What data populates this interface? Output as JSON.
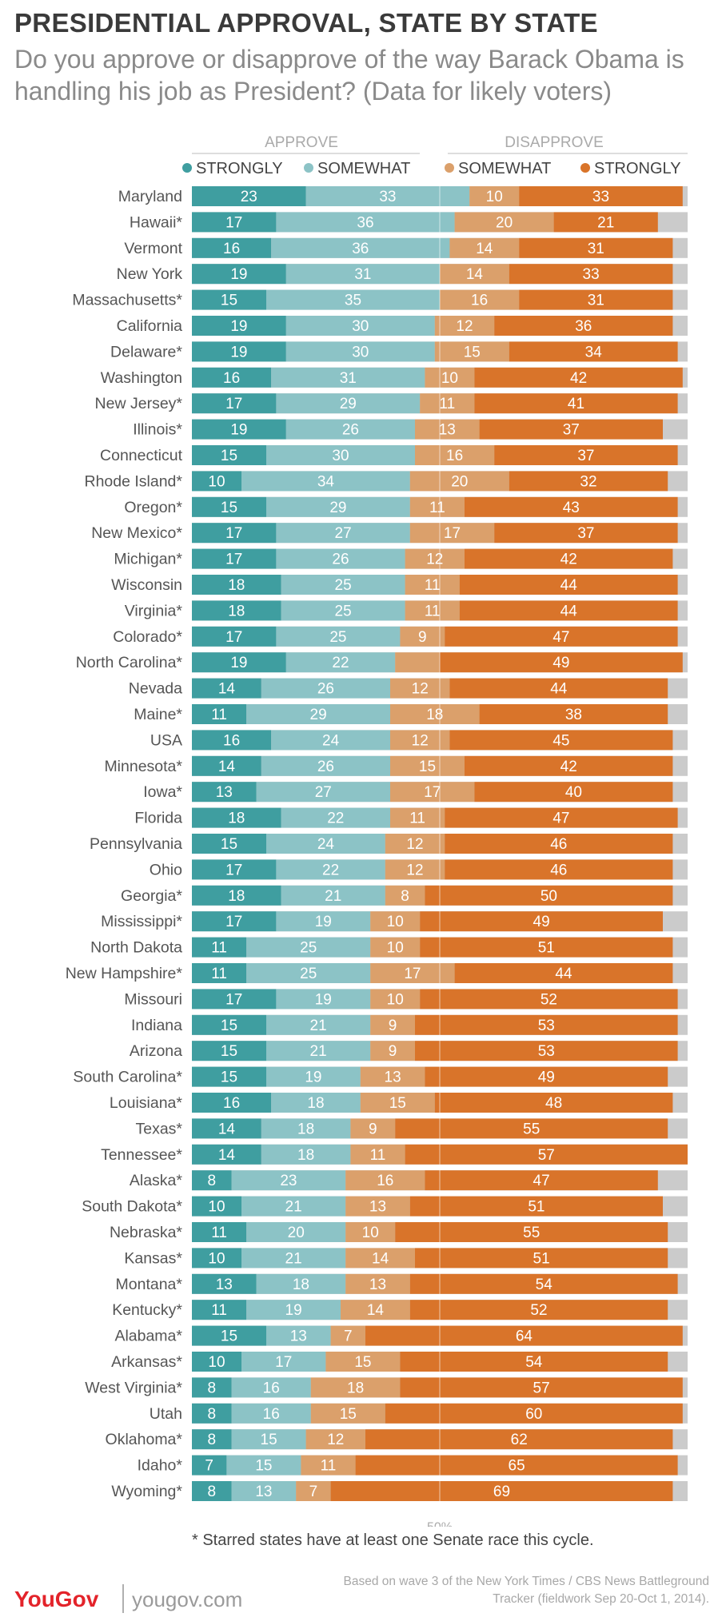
{
  "title": "PRESIDENTIAL APPROVAL, STATE BY STATE",
  "subtitle": "Do you approve or disapprove of the way Barack Obama is handling his job as President? (Data for likely voters)",
  "footnote": "* Starred states have at least one Senate race this cycle.",
  "brand": "YouGov",
  "site": "yougov.com",
  "source": "Based on wave 3 of the New York Times / CBS News Battleground Tracker (fieldwork Sep 20-Oct 1, 2014).",
  "colors": {
    "strongly_approve": "#3f9ea0",
    "somewhat_approve": "#8cc3c6",
    "somewhat_disapprove": "#dba06b",
    "strongly_disapprove": "#d9742a",
    "remainder": "#cbcbcb"
  },
  "chart_data": {
    "type": "bar",
    "orientation": "horizontal",
    "stacked": true,
    "group_labels": [
      "APPROVE",
      "DISAPPROVE"
    ],
    "legend": [
      "STRONGLY",
      "SOMEWHAT",
      "SOMEWHAT",
      "STRONGLY"
    ],
    "midline_label": "50%",
    "categories": [
      "Maryland",
      "Hawaii*",
      "Vermont",
      "New York",
      "Massachusetts*",
      "California",
      "Delaware*",
      "Washington",
      "New Jersey*",
      "Illinois*",
      "Connecticut",
      "Rhode Island*",
      "Oregon*",
      "New Mexico*",
      "Michigan*",
      "Wisconsin",
      "Virginia*",
      "Colorado*",
      "North Carolina*",
      "Nevada",
      "Maine*",
      "USA",
      "Minnesota*",
      "Iowa*",
      "Florida",
      "Pennsylvania",
      "Ohio",
      "Georgia*",
      "Mississippi*",
      "North Dakota",
      "New Hampshire*",
      "Missouri",
      "Indiana",
      "Arizona",
      "South Carolina*",
      "Louisiana*",
      "Texas*",
      "Tennessee*",
      "Alaska*",
      "South Dakota*",
      "Nebraska*",
      "Kansas*",
      "Montana*",
      "Kentucky*",
      "Alabama*",
      "Arkansas*",
      "West Virginia*",
      "Utah",
      "Oklahoma*",
      "Idaho*",
      "Wyoming*"
    ],
    "series": [
      {
        "name": "Strongly approve",
        "values": [
          23,
          17,
          16,
          19,
          15,
          19,
          19,
          16,
          17,
          19,
          15,
          10,
          15,
          17,
          17,
          18,
          18,
          17,
          19,
          14,
          11,
          16,
          14,
          13,
          18,
          15,
          17,
          18,
          17,
          11,
          11,
          17,
          15,
          15,
          15,
          16,
          14,
          14,
          8,
          10,
          11,
          10,
          13,
          11,
          15,
          10,
          8,
          8,
          8,
          7,
          8
        ]
      },
      {
        "name": "Somewhat approve",
        "values": [
          33,
          36,
          36,
          31,
          35,
          30,
          30,
          31,
          29,
          26,
          30,
          34,
          29,
          27,
          26,
          25,
          25,
          25,
          22,
          26,
          29,
          24,
          26,
          27,
          22,
          24,
          22,
          21,
          19,
          25,
          25,
          19,
          21,
          21,
          19,
          18,
          18,
          18,
          23,
          21,
          20,
          21,
          18,
          19,
          13,
          17,
          16,
          16,
          15,
          15,
          13
        ]
      },
      {
        "name": "Somewhat disapprove",
        "values": [
          10,
          20,
          14,
          14,
          16,
          12,
          15,
          10,
          11,
          13,
          16,
          20,
          11,
          17,
          12,
          11,
          11,
          9,
          9,
          12,
          18,
          12,
          15,
          17,
          11,
          12,
          12,
          8,
          10,
          10,
          17,
          10,
          9,
          9,
          13,
          15,
          9,
          11,
          16,
          13,
          10,
          14,
          13,
          14,
          7,
          15,
          18,
          15,
          12,
          11,
          7
        ]
      },
      {
        "name": "Strongly disapprove",
        "values": [
          33,
          21,
          31,
          33,
          31,
          36,
          34,
          42,
          41,
          37,
          37,
          32,
          43,
          37,
          42,
          44,
          44,
          47,
          49,
          44,
          38,
          45,
          42,
          40,
          47,
          46,
          46,
          50,
          49,
          51,
          44,
          52,
          53,
          53,
          49,
          48,
          55,
          57,
          47,
          51,
          55,
          51,
          54,
          52,
          64,
          54,
          57,
          60,
          62,
          65,
          69
        ]
      }
    ],
    "hidden_labels": [
      [],
      [],
      [],
      [],
      [],
      [],
      [],
      [],
      [],
      [],
      [],
      [],
      [],
      [],
      [],
      [],
      [],
      [],
      [
        2
      ],
      [],
      [],
      [],
      [],
      [],
      [],
      [],
      [],
      [],
      [],
      [],
      [],
      [],
      [],
      [],
      [],
      [],
      [],
      [],
      [],
      [],
      [],
      [],
      [],
      [],
      [],
      [],
      [],
      [],
      [],
      [],
      []
    ],
    "xlim": [
      0,
      100
    ],
    "grid": false
  }
}
